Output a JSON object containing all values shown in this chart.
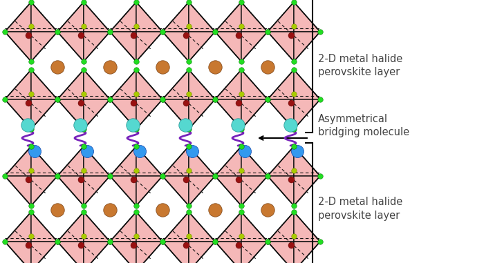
{
  "bg_color": "#ffffff",
  "pink_color": "#f5b8b8",
  "pink_edge": "#111111",
  "green_color": "#22dd22",
  "dark_red_color": "#991111",
  "yellow_green": "#aacc00",
  "copper_color": "#c87830",
  "cyan_color": "#55d8d0",
  "blue_color": "#3399ee",
  "purple_color": "#7722bb",
  "text_color": "#444444",
  "font_size": 10.5,
  "label1": "2-D metal halide\nperovskite layer",
  "label2": "Asymmetrical\nbridging molecule",
  "label3": "2-D metal halide\nperovskite layer",
  "figw": 7.0,
  "figh": 3.81,
  "dpi": 100
}
